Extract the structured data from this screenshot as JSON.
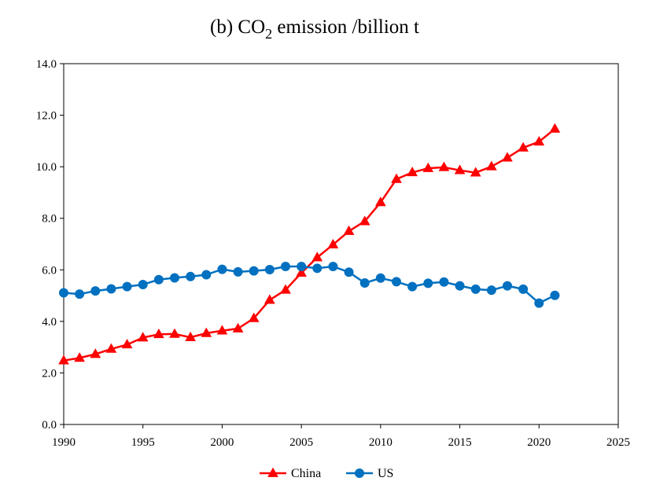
{
  "chart_data": {
    "type": "line",
    "title": {
      "prefix": "(b) CO",
      "subscript": "2",
      "suffix": " emission /billion t"
    },
    "xlabel": "",
    "ylabel": "",
    "xlim": [
      1990,
      2025
    ],
    "ylim": [
      0,
      14
    ],
    "x_ticks": [
      "1990",
      "1995",
      "2000",
      "2005",
      "2010",
      "2015",
      "2020",
      "2025"
    ],
    "y_ticks": [
      "0.0",
      "2.0",
      "4.0",
      "6.0",
      "8.0",
      "10.0",
      "12.0",
      "14.0"
    ],
    "grid": false,
    "legend_position": "bottom-center",
    "x": [
      1990,
      1991,
      1992,
      1993,
      1994,
      1995,
      1996,
      1997,
      1998,
      1999,
      2000,
      2001,
      2002,
      2003,
      2004,
      2005,
      2006,
      2007,
      2008,
      2009,
      2010,
      2011,
      2012,
      2013,
      2014,
      2015,
      2016,
      2017,
      2018,
      2019,
      2020,
      2021
    ],
    "series": [
      {
        "name": "China",
        "color": "#ff0000",
        "marker": "triangle",
        "values": [
          2.48,
          2.58,
          2.73,
          2.93,
          3.1,
          3.37,
          3.5,
          3.51,
          3.38,
          3.54,
          3.64,
          3.72,
          4.12,
          4.83,
          5.22,
          5.88,
          6.48,
          6.98,
          7.5,
          7.88,
          8.62,
          9.52,
          9.78,
          9.94,
          9.98,
          9.86,
          9.77,
          10.01,
          10.35,
          10.74,
          10.97,
          11.47
        ]
      },
      {
        "name": "US",
        "color": "#0070c0",
        "marker": "circle",
        "values": [
          5.11,
          5.06,
          5.18,
          5.26,
          5.35,
          5.43,
          5.62,
          5.69,
          5.74,
          5.81,
          6.02,
          5.92,
          5.96,
          6.01,
          6.13,
          6.13,
          6.06,
          6.13,
          5.91,
          5.49,
          5.68,
          5.54,
          5.35,
          5.48,
          5.53,
          5.38,
          5.25,
          5.21,
          5.38,
          5.25,
          4.71,
          5.01
        ]
      }
    ]
  }
}
